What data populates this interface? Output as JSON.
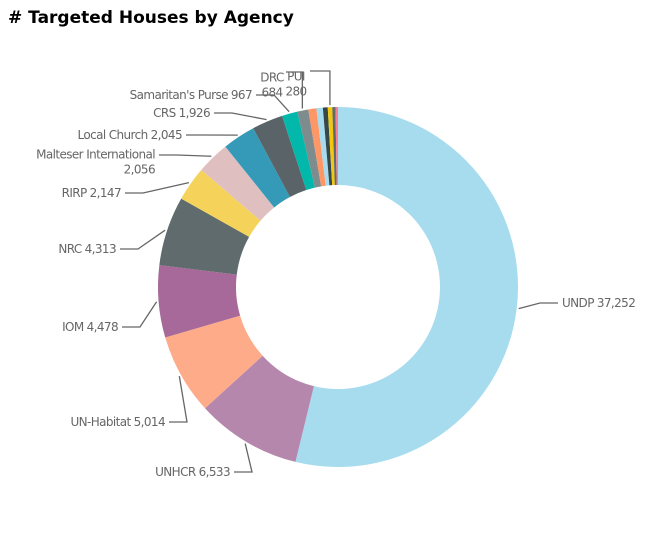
{
  "chart_data": {
    "type": "donut",
    "title": "# Targeted Houses by Agency",
    "categories": [
      "UNDP",
      "UNHCR",
      "UN-Habitat",
      "IOM",
      "NRC",
      "RIRP",
      "Malteser International",
      "Local Church",
      "CRS",
      "Samaritan's Purse",
      "DRC",
      null,
      null,
      null,
      "PUI",
      null,
      null
    ],
    "values": [
      37252,
      6533,
      5014,
      4478,
      4313,
      2147,
      2056,
      2045,
      1926,
      967,
      684,
      500,
      400,
      300,
      280,
      200,
      150
    ],
    "value_labels": [
      "37,252",
      "6,533",
      "5,014",
      "4,478",
      "4,313",
      "2,147",
      "2,056",
      "2,045",
      "1,926",
      "967",
      "684",
      null,
      null,
      null,
      "280",
      null,
      null
    ],
    "colors": [
      "#a6dcee",
      "#b687ac",
      "#fdab89",
      "#a66999",
      "#5f6b6d",
      "#f5d35b",
      "#dfbfbf",
      "#3599b8",
      "#5a6468",
      "#01b8aa",
      "#7f8c8d",
      "#fe9666",
      "#a6dcee",
      "#374649",
      "#f2c80f",
      "#5f6b6d",
      "#fd7f8f"
    ]
  }
}
